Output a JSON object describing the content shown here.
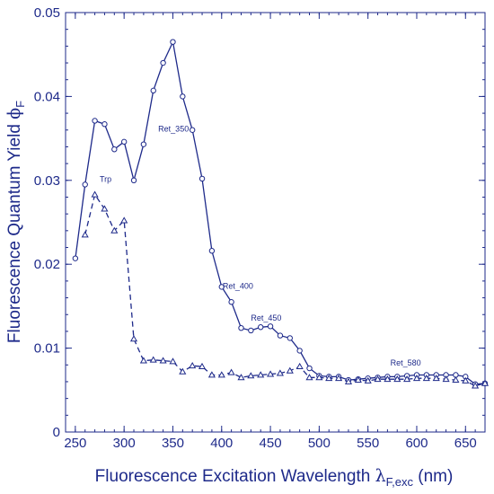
{
  "chart_data": {
    "type": "line",
    "title": "",
    "xlabel": "Fluorescence Excitation Wavelength",
    "xlabel_symbol": "λ",
    "xlabel_subscript": "F,exc",
    "xlabel_unit": "(nm)",
    "ylabel": "Fluorescence Quantum Yield",
    "ylabel_symbol": "ϕ",
    "ylabel_subscript": "F",
    "xlim": [
      240,
      670
    ],
    "ylim": [
      0,
      0.05
    ],
    "xticks": [
      250,
      300,
      350,
      400,
      450,
      500,
      550,
      600,
      650
    ],
    "xminor_step": 10,
    "yticks": [
      0,
      0.01,
      0.02,
      0.03,
      0.04,
      0.05
    ],
    "ytick_labels": [
      "0",
      "0.01",
      "0.02",
      "0.03",
      "0.04",
      "0.05"
    ],
    "yminor_step": 0.002,
    "grid": false,
    "color": "#1e2a8a",
    "series": [
      {
        "marker": "circle",
        "line": "solid",
        "x": [
          250,
          260,
          270,
          280,
          290,
          300,
          310,
          320,
          330,
          340,
          350,
          360,
          370,
          380,
          390,
          400,
          410,
          420,
          430,
          440,
          450,
          460,
          470,
          480,
          490,
          500,
          510,
          520,
          530,
          540,
          550,
          560,
          570,
          580,
          590,
          600,
          610,
          620,
          630,
          640,
          650,
          660,
          670
        ],
        "y": [
          0.0207,
          0.0295,
          0.0371,
          0.0367,
          0.0337,
          0.0346,
          0.03,
          0.0343,
          0.0407,
          0.044,
          0.0465,
          0.04,
          0.036,
          0.0302,
          0.0216,
          0.0173,
          0.0155,
          0.0124,
          0.0121,
          0.0125,
          0.0126,
          0.0115,
          0.0112,
          0.0097,
          0.0076,
          0.0067,
          0.0066,
          0.0066,
          0.0062,
          0.0063,
          0.0064,
          0.0065,
          0.0066,
          0.0066,
          0.0067,
          0.0068,
          0.0068,
          0.0068,
          0.0068,
          0.0068,
          0.0066,
          0.0057,
          0.0058
        ]
      },
      {
        "marker": "triangle",
        "line": "dashed",
        "x": [
          260,
          270,
          280,
          290,
          300,
          310,
          320,
          330,
          340,
          350,
          360,
          370,
          380,
          390,
          400,
          410,
          420,
          430,
          440,
          450,
          460,
          470,
          480,
          490,
          500,
          510,
          520,
          530,
          540,
          550,
          560,
          570,
          580,
          590,
          600,
          610,
          620,
          630,
          640,
          650,
          660,
          670
        ],
        "y": [
          0.0235,
          0.0283,
          0.0266,
          0.024,
          0.0252,
          0.0111,
          0.0085,
          0.0086,
          0.0085,
          0.0084,
          0.0072,
          0.0079,
          0.0078,
          0.0068,
          0.0068,
          0.0071,
          0.0065,
          0.0067,
          0.0068,
          0.0069,
          0.007,
          0.0073,
          0.0078,
          0.0065,
          0.0065,
          0.0064,
          0.0064,
          0.006,
          0.0062,
          0.0061,
          0.0063,
          0.0063,
          0.0063,
          0.0063,
          0.0064,
          0.0064,
          0.0064,
          0.0063,
          0.0062,
          0.0061,
          0.0055,
          0.0058
        ]
      }
    ],
    "annotations": [
      {
        "text": "Trp",
        "x": 275,
        "y": 0.0298
      },
      {
        "text": "Ret_350",
        "x": 335,
        "y": 0.0358
      },
      {
        "text": "Ret_400",
        "x": 401,
        "y": 0.0171
      },
      {
        "text": "Ret_450",
        "x": 430,
        "y": 0.0133
      },
      {
        "text": "Ret_580",
        "x": 573,
        "y": 0.0079
      }
    ]
  }
}
